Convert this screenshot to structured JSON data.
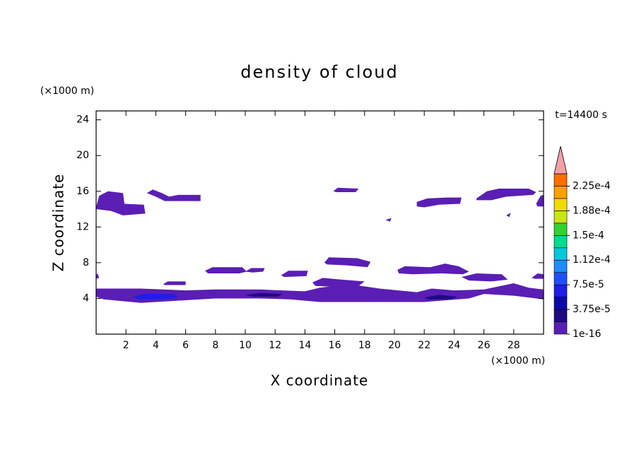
{
  "chart_data": {
    "type": "contour",
    "title": "density of cloud",
    "xlabel": "X coordinate",
    "ylabel": "Z coordinate",
    "xunit": "(×1000 m)",
    "yunit": "(×1000 m)",
    "time_label": "t=14400 s",
    "xlim": [
      0,
      30
    ],
    "ylim": [
      0,
      25
    ],
    "xticks": [
      2,
      4,
      6,
      8,
      10,
      12,
      14,
      16,
      18,
      20,
      22,
      24,
      26,
      28
    ],
    "yticks": [
      4,
      8,
      12,
      16,
      20,
      24
    ],
    "colorbar": {
      "levels": [
        1e-16,
        1.875e-05,
        3.75e-05,
        5.625e-05,
        7.5e-05,
        9.375e-05,
        0.0001125,
        0.00013125,
        0.00015,
        0.00016875,
        0.0001875,
        0.00020625,
        0.000225,
        0.00024375
      ],
      "colors": [
        "#5a1eb4",
        "#1e0a82",
        "#0a0aaa",
        "#1e1ee6",
        "#1e50ff",
        "#1e8cff",
        "#00c8dc",
        "#00dc8c",
        "#32d232",
        "#c8e614",
        "#f0dc00",
        "#ffa000",
        "#ff6e00",
        "#ff1e00"
      ],
      "extend_color": "#f4a0a8",
      "ticks": [
        {
          "value": 1e-16,
          "label": "1e-16"
        },
        {
          "value": 3.75e-05,
          "label": "3.75e-5"
        },
        {
          "value": 7.5e-05,
          "label": "7.5e-5"
        },
        {
          "value": 0.0001125,
          "label": "1.12e-4"
        },
        {
          "value": 0.00015,
          "label": "1.5e-4"
        },
        {
          "value": 0.0001875,
          "label": "1.88e-4"
        },
        {
          "value": 0.000225,
          "label": "2.25e-4"
        }
      ]
    },
    "regions": [
      {
        "value": 1e-16,
        "x": [
          0,
          0.2,
          0.8,
          1.8,
          1.9,
          3.2,
          3.3,
          1.8,
          1.0,
          0
        ],
        "z": [
          14.2,
          15.5,
          16,
          15.8,
          14.6,
          14.5,
          13.5,
          13.3,
          13.8,
          14
        ]
      },
      {
        "value": 1e-16,
        "x": [
          3.4,
          3.8,
          4.4,
          4.9,
          5.5,
          7,
          7,
          4.6,
          4
        ],
        "z": [
          15.8,
          16.2,
          15.8,
          15.4,
          15.6,
          15.6,
          14.9,
          14.9,
          15.4
        ]
      },
      {
        "value": 1e-16,
        "x": [
          15.9,
          16.2,
          17.6,
          17.4,
          16.1
        ],
        "z": [
          16.0,
          16.4,
          16.3,
          15.9,
          15.9
        ]
      },
      {
        "value": 1e-16,
        "x": [
          21.5,
          22.2,
          23.5,
          24.5,
          24.4,
          23,
          22,
          21.5
        ],
        "z": [
          14.8,
          15.2,
          15.3,
          15.3,
          14.6,
          14.5,
          14.2,
          14.3
        ]
      },
      {
        "value": 1e-16,
        "x": [
          25.5,
          26.2,
          27,
          29,
          29.5,
          29.3,
          27.5,
          26.5,
          25.5
        ],
        "z": [
          15.2,
          16,
          16.3,
          16.3,
          15.9,
          15.6,
          15.4,
          15.0,
          15.0
        ]
      },
      {
        "value": 1e-16,
        "x": [
          29.5,
          29.8,
          30,
          30,
          29.6
        ],
        "z": [
          14.6,
          15.5,
          15.6,
          14.3,
          14.3
        ]
      },
      {
        "value": 1e-16,
        "x": [
          19.4,
          19.8,
          19.7
        ],
        "z": [
          12.8,
          13.0,
          12.6
        ]
      },
      {
        "value": 1e-16,
        "x": [
          27.5,
          27.8,
          27.7
        ],
        "z": [
          13.3,
          13.6,
          13.1
        ]
      },
      {
        "value": 1e-16,
        "x": [
          7.3,
          7.8,
          9.8,
          10.1,
          9.6,
          8.2,
          7.5
        ],
        "z": [
          7.1,
          7.5,
          7.5,
          7.0,
          6.8,
          6.8,
          6.8
        ]
      },
      {
        "value": 1e-16,
        "x": [
          10,
          10.4,
          11.3,
          11.2,
          10.5
        ],
        "z": [
          7.0,
          7.4,
          7.4,
          7.0,
          6.9
        ]
      },
      {
        "value": 1e-16,
        "x": [
          12.4,
          12.9,
          14.2,
          14.1,
          12.6
        ],
        "z": [
          6.6,
          7.1,
          7.1,
          6.5,
          6.4
        ]
      },
      {
        "value": 1e-16,
        "x": [
          15.3,
          15.6,
          17.5,
          18.4,
          18.2,
          16.8,
          15.5
        ],
        "z": [
          8.0,
          8.6,
          8.5,
          8.1,
          7.5,
          7.7,
          7.8
        ]
      },
      {
        "value": 1e-16,
        "x": [
          20.2,
          20.7,
          22.4,
          23.4,
          24.3,
          25,
          24.6,
          23.2,
          21.2,
          20.3
        ],
        "z": [
          7.2,
          7.6,
          7.5,
          7.9,
          7.6,
          7.0,
          6.7,
          6.8,
          6.7,
          6.8
        ]
      },
      {
        "value": 1e-16,
        "x": [
          24.5,
          25.5,
          27.2,
          27.6,
          26.5,
          25
        ],
        "z": [
          6.4,
          6.8,
          6.7,
          6.1,
          5.9,
          6.0
        ]
      },
      {
        "value": 1e-16,
        "x": [
          14.5,
          15.2,
          16.5,
          18,
          17.6,
          16,
          14.7
        ],
        "z": [
          5.8,
          6.3,
          6.1,
          5.9,
          5.4,
          5.3,
          5.4
        ]
      },
      {
        "value": 1e-16,
        "x": [
          4.5,
          4.8,
          6,
          6,
          4.6
        ],
        "z": [
          5.6,
          5.9,
          5.9,
          5.5,
          5.5
        ]
      },
      {
        "value": 1e-16,
        "x": [
          0,
          0.2,
          0.1,
          0
        ],
        "z": [
          6.2,
          6.3,
          6.8,
          6.6
        ]
      },
      {
        "value": 1e-16,
        "x": [
          29.2,
          29.6,
          30,
          30,
          29.4
        ],
        "z": [
          6.3,
          6.8,
          6.7,
          6.2,
          6.2
        ]
      },
      {
        "value": 1e-16,
        "x": [
          0,
          0,
          3,
          6,
          8,
          11,
          14,
          15,
          17,
          19,
          21.5,
          22.5,
          24,
          26,
          28,
          29,
          30,
          30,
          28,
          26,
          25,
          22,
          17,
          15,
          13,
          11,
          8,
          5,
          3,
          0.5
        ],
        "z": [
          4.2,
          5.1,
          5.1,
          4.9,
          5.0,
          5.0,
          4.8,
          5.2,
          5.6,
          5.1,
          4.7,
          5.1,
          4.9,
          5.0,
          5.7,
          5.2,
          5.0,
          3.9,
          4.3,
          4.5,
          4.0,
          3.6,
          3.6,
          3.6,
          3.9,
          4.0,
          4.0,
          3.7,
          3.5,
          3.9
        ]
      },
      {
        "value": 5.625e-05,
        "x": [
          2.5,
          3.2,
          5.2,
          5.5,
          4.5,
          2.8
        ],
        "z": [
          4.2,
          4.5,
          4.5,
          4.1,
          3.9,
          3.9
        ]
      },
      {
        "value": 1.875e-05,
        "x": [
          10,
          11,
          12.5,
          12.2,
          10.5
        ],
        "z": [
          4.4,
          4.6,
          4.5,
          4.2,
          4.2
        ]
      },
      {
        "value": 1.875e-05,
        "x": [
          22,
          23,
          24.2,
          23.8,
          22.3
        ],
        "z": [
          4.1,
          4.4,
          4.2,
          3.9,
          3.9
        ]
      }
    ]
  }
}
